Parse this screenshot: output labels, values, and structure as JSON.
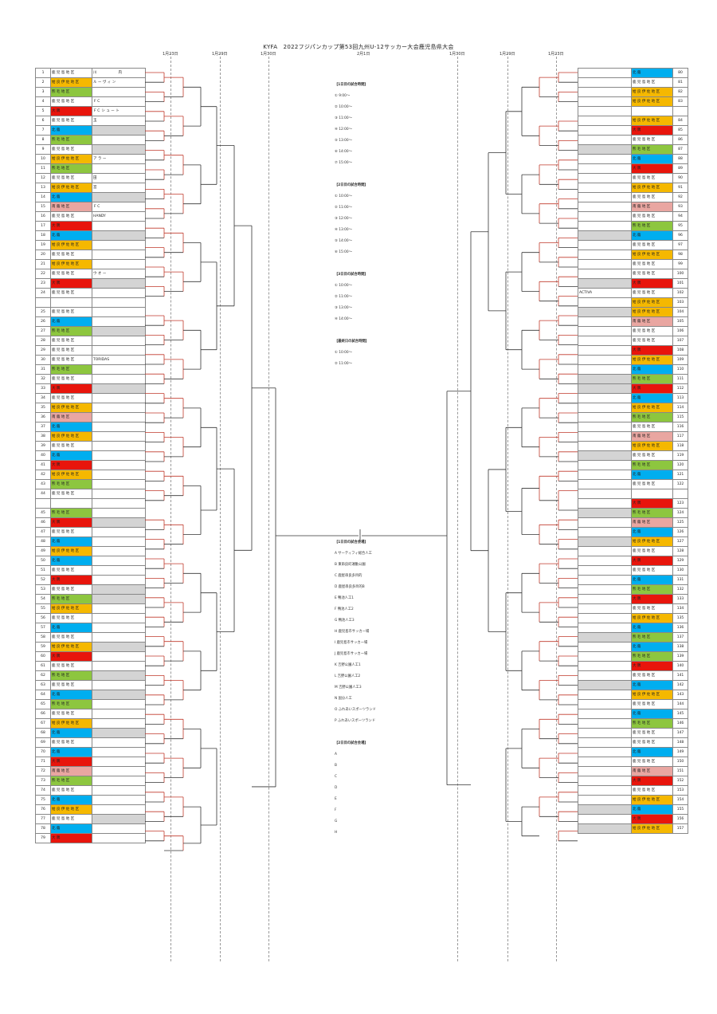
{
  "title": "KYFA　2022フジパンカップ第53回九州U-12サッカー大会鹿児島県大会",
  "dates": [
    "1月23日",
    "1月29日",
    "1月30日",
    "2月1日",
    "1月30日",
    "1月29日",
    "1月23日"
  ],
  "colors": {
    "orange": "#f5b800",
    "green": "#8dc63f",
    "red": "#e8150c",
    "blue": "#00aeef",
    "pink": "#e9a6a1",
    "gray": "#d4d4d4",
    "line": "#c0392b"
  },
  "left_teams": [
    {
      "n": "1",
      "pref": "鹿 児 島 地 区",
      "pc": "",
      "name": "川　　　　　　内",
      "nc": ""
    },
    {
      "n": "2",
      "pref": "姶 良 伊 佐 地 区",
      "pc": "orange",
      "name": "ル ー ヴ ィ ン",
      "nc": ""
    },
    {
      "n": "3",
      "pref": "熊 毛 地 区",
      "pc": "green",
      "name": "",
      "nc": ""
    },
    {
      "n": "4",
      "pref": "鹿 児 島 地 区",
      "pc": "",
      "name": "ＦＣ",
      "nc": ""
    },
    {
      "n": "5",
      "pref": "大 隅",
      "pc": "red",
      "name": "ＦＣ シ ュ ー ト",
      "nc": ""
    },
    {
      "n": "6",
      "pref": "鹿 児 島 地 区",
      "pc": "",
      "name": "玉",
      "nc": ""
    },
    {
      "n": "7",
      "pref": "北 薩",
      "pc": "blue",
      "name": "",
      "nc": "gray"
    },
    {
      "n": "8",
      "pref": "熊 毛 地 区",
      "pc": "green",
      "name": "",
      "nc": ""
    },
    {
      "n": "9",
      "pref": "鹿 児 島 地 区",
      "pc": "",
      "name": "",
      "nc": "gray"
    },
    {
      "n": "10",
      "pref": "姶 良 伊 佐 地 区",
      "pc": "orange",
      "name": "ア ラ ー",
      "nc": ""
    },
    {
      "n": "11",
      "pref": "熊 毛 地 区",
      "pc": "green",
      "name": "",
      "nc": ""
    },
    {
      "n": "12",
      "pref": "鹿 児 島 地 区",
      "pc": "",
      "name": "田",
      "nc": ""
    },
    {
      "n": "13",
      "pref": "姶 良 伊 佐 地 区",
      "pc": "orange",
      "name": "宮",
      "nc": ""
    },
    {
      "n": "14",
      "pref": "北 薩",
      "pc": "blue",
      "name": "",
      "nc": "gray"
    },
    {
      "n": "15",
      "pref": "南 薩 地 区",
      "pc": "pink",
      "name": "ＦＣ",
      "nc": ""
    },
    {
      "n": "16",
      "pref": "鹿 児 島 地 区",
      "pc": "",
      "name": "HANDY",
      "nc": ""
    },
    {
      "n": "17",
      "pref": "大 隅",
      "pc": "red",
      "name": "",
      "nc": ""
    },
    {
      "n": "18",
      "pref": "北 薩",
      "pc": "blue",
      "name": "",
      "nc": "gray"
    },
    {
      "n": "19",
      "pref": "姶 良 伊 佐 地 区",
      "pc": "orange",
      "name": "",
      "nc": ""
    },
    {
      "n": "20",
      "pref": "鹿 児 島 地 区",
      "pc": "",
      "name": "",
      "nc": ""
    },
    {
      "n": "21",
      "pref": "姶 良 伊 佐 地 区",
      "pc": "orange",
      "name": "",
      "nc": ""
    },
    {
      "n": "22",
      "pref": "鹿 児 島 地 区",
      "pc": "",
      "name": "ウ オ ー",
      "nc": ""
    },
    {
      "n": "23",
      "pref": "大 隅",
      "pc": "red",
      "name": "",
      "nc": "gray"
    },
    {
      "n": "24",
      "pref": "鹿 児 島 地 区",
      "pc": "",
      "name": "",
      "nc": ""
    },
    {
      "n": "",
      "pref": "",
      "pc": "",
      "name": "",
      "nc": "",
      "blank": true
    },
    {
      "n": "25",
      "pref": "鹿 児 島 地 区",
      "pc": "",
      "name": "",
      "nc": ""
    },
    {
      "n": "26",
      "pref": "北 薩",
      "pc": "blue",
      "name": "",
      "nc": ""
    },
    {
      "n": "27",
      "pref": "熊 毛 地 区",
      "pc": "green",
      "name": "",
      "nc": "gray"
    },
    {
      "n": "28",
      "pref": "鹿 児 島 地 区",
      "pc": "",
      "name": "",
      "nc": ""
    },
    {
      "n": "29",
      "pref": "鹿 児 島 地 区",
      "pc": "",
      "name": "",
      "nc": ""
    },
    {
      "n": "30",
      "pref": "鹿 児 島 地 区",
      "pc": "",
      "name": "TORIDAS",
      "nc": ""
    },
    {
      "n": "31",
      "pref": "熊 毛 地 区",
      "pc": "green",
      "name": "",
      "nc": ""
    },
    {
      "n": "32",
      "pref": "鹿 児 島 地 区",
      "pc": "",
      "name": "",
      "nc": ""
    },
    {
      "n": "33",
      "pref": "大 隅",
      "pc": "red",
      "name": "",
      "nc": "gray"
    },
    {
      "n": "34",
      "pref": "鹿 児 島 地 区",
      "pc": "",
      "name": "",
      "nc": ""
    },
    {
      "n": "35",
      "pref": "姶 良 伊 佐 地 区",
      "pc": "orange",
      "name": "",
      "nc": ""
    },
    {
      "n": "36",
      "pref": "南 薩 地 区",
      "pc": "pink",
      "name": "",
      "nc": ""
    },
    {
      "n": "37",
      "pref": "北 薩",
      "pc": "blue",
      "name": "",
      "nc": ""
    },
    {
      "n": "38",
      "pref": "姶 良 伊 佐 地 区",
      "pc": "orange",
      "name": "",
      "nc": ""
    },
    {
      "n": "39",
      "pref": "鹿 児 島 地 区",
      "pc": "",
      "name": "",
      "nc": ""
    },
    {
      "n": "40",
      "pref": "北 薩",
      "pc": "blue",
      "name": "",
      "nc": ""
    },
    {
      "n": "41",
      "pref": "大 隅",
      "pc": "red",
      "name": "",
      "nc": ""
    },
    {
      "n": "42",
      "pref": "姶 良 伊 佐 地 区",
      "pc": "orange",
      "name": "",
      "nc": ""
    },
    {
      "n": "43",
      "pref": "熊 毛 地 区",
      "pc": "green",
      "name": "",
      "nc": ""
    },
    {
      "n": "44",
      "pref": "鹿 児 島 地 区",
      "pc": "",
      "name": "",
      "nc": ""
    },
    {
      "n": "",
      "pref": "",
      "pc": "",
      "name": "",
      "nc": "",
      "blank": true
    },
    {
      "n": "45",
      "pref": "熊 毛 地 区",
      "pc": "green",
      "name": "",
      "nc": ""
    },
    {
      "n": "46",
      "pref": "大 隅",
      "pc": "red",
      "name": "",
      "nc": "gray"
    },
    {
      "n": "47",
      "pref": "鹿 児 島 地 区",
      "pc": "",
      "name": "",
      "nc": ""
    },
    {
      "n": "48",
      "pref": "北 薩",
      "pc": "blue",
      "name": "",
      "nc": ""
    },
    {
      "n": "49",
      "pref": "姶 良 伊 佐 地 区",
      "pc": "orange",
      "name": "",
      "nc": ""
    },
    {
      "n": "50",
      "pref": "北 薩",
      "pc": "blue",
      "name": "",
      "nc": ""
    },
    {
      "n": "51",
      "pref": "鹿 児 島 地 区",
      "pc": "",
      "name": "",
      "nc": ""
    },
    {
      "n": "52",
      "pref": "大 隅",
      "pc": "red",
      "name": "",
      "nc": ""
    },
    {
      "n": "53",
      "pref": "鹿 児 島 地 区",
      "pc": "",
      "name": "",
      "nc": "gray"
    },
    {
      "n": "54",
      "pref": "熊 毛 地 区",
      "pc": "green",
      "name": "",
      "nc": "gray"
    },
    {
      "n": "55",
      "pref": "姶 良 伊 佐 地 区",
      "pc": "orange",
      "name": "",
      "nc": ""
    },
    {
      "n": "56",
      "pref": "鹿 児 島 地 区",
      "pc": "",
      "name": "",
      "nc": ""
    },
    {
      "n": "57",
      "pref": "北 薩",
      "pc": "blue",
      "name": "",
      "nc": ""
    },
    {
      "n": "58",
      "pref": "鹿 児 島 地 区",
      "pc": "",
      "name": "",
      "nc": ""
    },
    {
      "n": "59",
      "pref": "姶 良 伊 佐 地 区",
      "pc": "orange",
      "name": "",
      "nc": "gray"
    },
    {
      "n": "60",
      "pref": "大 隅",
      "pc": "red",
      "name": "",
      "nc": ""
    },
    {
      "n": "61",
      "pref": "鹿 児 島 地 区",
      "pc": "",
      "name": "",
      "nc": ""
    },
    {
      "n": "62",
      "pref": "熊 毛 地 区",
      "pc": "green",
      "name": "",
      "nc": "gray"
    },
    {
      "n": "63",
      "pref": "鹿 児 島 地 区",
      "pc": "",
      "name": "",
      "nc": ""
    },
    {
      "n": "64",
      "pref": "北 薩",
      "pc": "blue",
      "name": "",
      "nc": "gray"
    },
    {
      "n": "65",
      "pref": "熊 毛 地 区",
      "pc": "green",
      "name": "",
      "nc": ""
    },
    {
      "n": "66",
      "pref": "鹿 児 島 地 区",
      "pc": "",
      "name": "",
      "nc": ""
    },
    {
      "n": "67",
      "pref": "姶 良 伊 佐 地 区",
      "pc": "orange",
      "name": "",
      "nc": ""
    },
    {
      "n": "68",
      "pref": "北 薩",
      "pc": "blue",
      "name": "",
      "nc": "gray"
    },
    {
      "n": "69",
      "pref": "鹿 児 島 地 区",
      "pc": "",
      "name": "",
      "nc": ""
    },
    {
      "n": "70",
      "pref": "北 薩",
      "pc": "blue",
      "name": "",
      "nc": ""
    },
    {
      "n": "71",
      "pref": "大 隅",
      "pc": "red",
      "name": "",
      "nc": ""
    },
    {
      "n": "72",
      "pref": "南 薩 地 区",
      "pc": "pink",
      "name": "",
      "nc": ""
    },
    {
      "n": "73",
      "pref": "熊 毛 地 区",
      "pc": "green",
      "name": "",
      "nc": ""
    },
    {
      "n": "74",
      "pref": "鹿 児 島 地 区",
      "pc": "",
      "name": "",
      "nc": ""
    },
    {
      "n": "75",
      "pref": "北 薩",
      "pc": "blue",
      "name": "",
      "nc": ""
    },
    {
      "n": "76",
      "pref": "姶 良 伊 佐 地 区",
      "pc": "orange",
      "name": "",
      "nc": ""
    },
    {
      "n": "77",
      "pref": "鹿 児 島 地 区",
      "pc": "",
      "name": "",
      "nc": "gray"
    },
    {
      "n": "78",
      "pref": "北 薩",
      "pc": "blue",
      "name": "",
      "nc": ""
    },
    {
      "n": "79",
      "pref": "大 隅",
      "pc": "red",
      "name": "",
      "nc": ""
    }
  ],
  "right_teams": [
    {
      "n": "80",
      "pref": "北 薩",
      "pc": "blue",
      "name": "",
      "nc": ""
    },
    {
      "n": "81",
      "pref": "鹿 児 島 地 区",
      "pc": "",
      "name": "",
      "nc": ""
    },
    {
      "n": "82",
      "pref": "姶 良 伊 佐 地 区",
      "pc": "orange",
      "name": "",
      "nc": ""
    },
    {
      "n": "83",
      "pref": "姶 良 伊 佐 地 区",
      "pc": "orange",
      "name": "",
      "nc": ""
    },
    {
      "n": "",
      "pref": "",
      "pc": "",
      "name": "",
      "nc": "",
      "blank": true
    },
    {
      "n": "84",
      "pref": "姶 良 伊 佐 地 区",
      "pc": "orange",
      "name": "",
      "nc": ""
    },
    {
      "n": "85",
      "pref": "大 隅",
      "pc": "red",
      "name": "",
      "nc": ""
    },
    {
      "n": "86",
      "pref": "鹿 児 島 地 区",
      "pc": "",
      "name": "",
      "nc": ""
    },
    {
      "n": "87",
      "pref": "熊 毛 地 区",
      "pc": "green",
      "name": "",
      "nc": "gray"
    },
    {
      "n": "88",
      "pref": "北 薩",
      "pc": "blue",
      "name": "",
      "nc": ""
    },
    {
      "n": "89",
      "pref": "大 隅",
      "pc": "red",
      "name": "",
      "nc": ""
    },
    {
      "n": "90",
      "pref": "鹿 児 島 地 区",
      "pc": "",
      "name": "",
      "nc": ""
    },
    {
      "n": "91",
      "pref": "姶 良 伊 佐 地 区",
      "pc": "orange",
      "name": "",
      "nc": ""
    },
    {
      "n": "92",
      "pref": "鹿 児 島 地 区",
      "pc": "",
      "name": "",
      "nc": ""
    },
    {
      "n": "93",
      "pref": "南 薩 地 区",
      "pc": "pink",
      "name": "",
      "nc": ""
    },
    {
      "n": "94",
      "pref": "鹿 児 島 地 区",
      "pc": "",
      "name": "",
      "nc": ""
    },
    {
      "n": "95",
      "pref": "熊 毛 地 区",
      "pc": "green",
      "name": "",
      "nc": ""
    },
    {
      "n": "96",
      "pref": "北 薩",
      "pc": "blue",
      "name": "",
      "nc": "gray"
    },
    {
      "n": "97",
      "pref": "鹿 児 島 地 区",
      "pc": "",
      "name": "",
      "nc": ""
    },
    {
      "n": "98",
      "pref": "姶 良 伊 佐 地 区",
      "pc": "orange",
      "name": "",
      "nc": ""
    },
    {
      "n": "99",
      "pref": "鹿 児 島 地 区",
      "pc": "",
      "name": "",
      "nc": ""
    },
    {
      "n": "100",
      "pref": "鹿 児 島 地 区",
      "pc": "",
      "name": "",
      "nc": ""
    },
    {
      "n": "101",
      "pref": "大 隅",
      "pc": "red",
      "name": "",
      "nc": "gray"
    },
    {
      "n": "102",
      "pref": "鹿 児 島 地 区",
      "pc": "",
      "name": "ACTIVA",
      "nc": ""
    },
    {
      "n": "103",
      "pref": "姶 良 伊 佐 地 区",
      "pc": "orange",
      "name": "",
      "nc": ""
    },
    {
      "n": "104",
      "pref": "姶 良 伊 佐 地 区",
      "pc": "orange",
      "name": "",
      "nc": "gray"
    },
    {
      "n": "105",
      "pref": "南 薩 地 区",
      "pc": "pink",
      "name": "",
      "nc": ""
    },
    {
      "n": "106",
      "pref": "鹿 児 島 地 区",
      "pc": "",
      "name": "",
      "nc": ""
    },
    {
      "n": "107",
      "pref": "鹿 児 島 地 区",
      "pc": "",
      "name": "",
      "nc": ""
    },
    {
      "n": "108",
      "pref": "大 隅",
      "pc": "red",
      "name": "",
      "nc": ""
    },
    {
      "n": "109",
      "pref": "姶 良 伊 佐 地 区",
      "pc": "orange",
      "name": "",
      "nc": ""
    },
    {
      "n": "110",
      "pref": "北 薩",
      "pc": "blue",
      "name": "",
      "nc": ""
    },
    {
      "n": "111",
      "pref": "熊 毛 地 区",
      "pc": "green",
      "name": "",
      "nc": "gray"
    },
    {
      "n": "112",
      "pref": "大 隅",
      "pc": "red",
      "name": "",
      "nc": "gray"
    },
    {
      "n": "113",
      "pref": "北 薩",
      "pc": "blue",
      "name": "",
      "nc": ""
    },
    {
      "n": "114",
      "pref": "姶 良 伊 佐 地 区",
      "pc": "orange",
      "name": "",
      "nc": ""
    },
    {
      "n": "115",
      "pref": "熊 毛 地 区",
      "pc": "green",
      "name": "",
      "nc": ""
    },
    {
      "n": "116",
      "pref": "鹿 児 島 地 区",
      "pc": "",
      "name": "",
      "nc": ""
    },
    {
      "n": "117",
      "pref": "南 薩 地 区",
      "pc": "pink",
      "name": "",
      "nc": ""
    },
    {
      "n": "118",
      "pref": "姶 良 伊 佐 地 区",
      "pc": "orange",
      "name": "",
      "nc": ""
    },
    {
      "n": "119",
      "pref": "鹿 児 島 地 区",
      "pc": "",
      "name": "",
      "nc": "gray"
    },
    {
      "n": "120",
      "pref": "熊 毛 地 区",
      "pc": "green",
      "name": "",
      "nc": ""
    },
    {
      "n": "121",
      "pref": "北 薩",
      "pc": "blue",
      "name": "",
      "nc": ""
    },
    {
      "n": "122",
      "pref": "鹿 児 島 地 区",
      "pc": "",
      "name": "",
      "nc": ""
    },
    {
      "n": "",
      "pref": "",
      "pc": "",
      "name": "",
      "nc": "",
      "blank": true
    },
    {
      "n": "123",
      "pref": "大 隅",
      "pc": "red",
      "name": "",
      "nc": ""
    },
    {
      "n": "124",
      "pref": "熊 毛 地 区",
      "pc": "green",
      "name": "",
      "nc": "gray"
    },
    {
      "n": "125",
      "pref": "南 薩 地 区",
      "pc": "pink",
      "name": "",
      "nc": ""
    },
    {
      "n": "126",
      "pref": "北 薩",
      "pc": "blue",
      "name": "",
      "nc": ""
    },
    {
      "n": "127",
      "pref": "姶 良 伊 佐 地 区",
      "pc": "orange",
      "name": "",
      "nc": "gray"
    },
    {
      "n": "128",
      "pref": "鹿 児 島 地 区",
      "pc": "",
      "name": "",
      "nc": ""
    },
    {
      "n": "129",
      "pref": "大 隅",
      "pc": "red",
      "name": "",
      "nc": ""
    },
    {
      "n": "130",
      "pref": "鹿 児 島 地 区",
      "pc": "",
      "name": "",
      "nc": ""
    },
    {
      "n": "131",
      "pref": "北 薩",
      "pc": "blue",
      "name": "",
      "nc": ""
    },
    {
      "n": "132",
      "pref": "熊 毛 地 区",
      "pc": "green",
      "name": "",
      "nc": ""
    },
    {
      "n": "133",
      "pref": "大 隅",
      "pc": "red",
      "name": "",
      "nc": ""
    },
    {
      "n": "134",
      "pref": "鹿 児 島 地 区",
      "pc": "",
      "name": "",
      "nc": ""
    },
    {
      "n": "135",
      "pref": "姶 良 伊 佐 地 区",
      "pc": "orange",
      "name": "",
      "nc": ""
    },
    {
      "n": "136",
      "pref": "北 薩",
      "pc": "blue",
      "name": "",
      "nc": ""
    },
    {
      "n": "137",
      "pref": "熊 毛 地 区",
      "pc": "green",
      "name": "",
      "nc": "gray"
    },
    {
      "n": "138",
      "pref": "北 薩",
      "pc": "blue",
      "name": "",
      "nc": ""
    },
    {
      "n": "139",
      "pref": "熊 毛 地 区",
      "pc": "green",
      "name": "",
      "nc": ""
    },
    {
      "n": "140",
      "pref": "大 隅",
      "pc": "red",
      "name": "",
      "nc": ""
    },
    {
      "n": "141",
      "pref": "鹿 児 島 地 区",
      "pc": "",
      "name": "",
      "nc": ""
    },
    {
      "n": "142",
      "pref": "北 薩",
      "pc": "blue",
      "name": "",
      "nc": "gray"
    },
    {
      "n": "143",
      "pref": "姶 良 伊 佐 地 区",
      "pc": "orange",
      "name": "",
      "nc": ""
    },
    {
      "n": "144",
      "pref": "鹿 児 島 地 区",
      "pc": "",
      "name": "",
      "nc": ""
    },
    {
      "n": "145",
      "pref": "北 薩",
      "pc": "blue",
      "name": "",
      "nc": ""
    },
    {
      "n": "146",
      "pref": "熊 毛 地 区",
      "pc": "green",
      "name": "",
      "nc": ""
    },
    {
      "n": "147",
      "pref": "鹿 児 島 地 区",
      "pc": "",
      "name": "",
      "nc": ""
    },
    {
      "n": "148",
      "pref": "鹿 児 島 地 区",
      "pc": "",
      "name": "",
      "nc": ""
    },
    {
      "n": "149",
      "pref": "北 薩",
      "pc": "blue",
      "name": "",
      "nc": ""
    },
    {
      "n": "150",
      "pref": "鹿 児 島 地 区",
      "pc": "",
      "name": "",
      "nc": ""
    },
    {
      "n": "151",
      "pref": "南 薩 地 区",
      "pc": "pink",
      "name": "",
      "nc": ""
    },
    {
      "n": "152",
      "pref": "大 隅",
      "pc": "red",
      "name": "",
      "nc": ""
    },
    {
      "n": "153",
      "pref": "鹿 児 島 地 区",
      "pc": "",
      "name": "",
      "nc": ""
    },
    {
      "n": "154",
      "pref": "姶 良 伊 佐 地 区",
      "pc": "orange",
      "name": "",
      "nc": ""
    },
    {
      "n": "155",
      "pref": "北 薩",
      "pc": "blue",
      "name": "",
      "nc": "gray"
    },
    {
      "n": "156",
      "pref": "大 隅",
      "pc": "red",
      "name": "",
      "nc": ""
    },
    {
      "n": "157",
      "pref": "姶 良 伊 佐 地 区",
      "pc": "orange",
      "name": "",
      "nc": "gray"
    }
  ],
  "info": {
    "day1_heading": "【1日目の試合時間】",
    "day1": [
      "① 9:00〜",
      "② 10:00〜",
      "③ 11:00〜",
      "④ 12:00〜",
      "⑤ 13:00〜",
      "⑥ 14:00〜",
      "⑦ 15:00〜"
    ],
    "day2_heading": "【2日目の試合時間】",
    "day2": [
      "① 10:00〜",
      "② 11:00〜",
      "③ 12:00〜",
      "④ 13:00〜",
      "⑤ 14:00〜",
      "⑥ 15:00〜"
    ],
    "day3_heading": "【3日目の試合時間】",
    "day3": [
      "① 10:00〜",
      "② 11:00〜",
      "③ 13:00〜",
      "④ 14:00〜"
    ],
    "final_heading": "【最終日の試合時間】",
    "final": [
      "① 10:00〜",
      "② 11:00〜"
    ],
    "venue1_heading": "【1日目の試合会場】",
    "venue1": [
      "A サーティフィ総合人工",
      "B 東串良町運動公園",
      "C 鹿屋串良多目的",
      "D 鹿屋串良多目的B",
      "E 鴨池人工1",
      "F 鴨池人工2",
      "G 鴨池人工3",
      "H 鹿児島市サッカー場",
      "I 鹿児島市サッカー場",
      "J 鹿児島市サッカー場",
      "K 吉野公園人工1",
      "L 吉野公園人工2",
      "M 吉野公園人工3",
      "N 国分人工",
      "O ふれあいスポーツランド",
      "P ふれあいスポーツランド"
    ],
    "venue2_heading": "【2日目の試合会場】",
    "venue2": [
      "A",
      "B",
      "C",
      "D",
      "E",
      "F",
      "G",
      "H"
    ]
  }
}
